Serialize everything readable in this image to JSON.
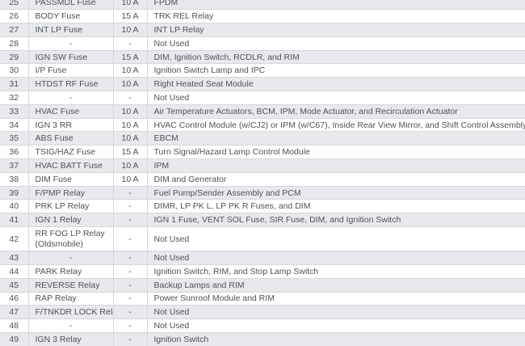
{
  "colors": {
    "stripe_row_bg": "#e8e9ec",
    "plain_row_bg": "#ffffff",
    "border": "#d6d7da",
    "text": "#4e5257"
  },
  "table": {
    "empty_marker": "-",
    "rows": [
      {
        "num": "25",
        "name": "PASSMDL Fuse",
        "amp": "10 A",
        "desc": "FPDM"
      },
      {
        "num": "26",
        "name": "BODY Fuse",
        "amp": "15 A",
        "desc": "TRK REL Relay"
      },
      {
        "num": "27",
        "name": "INT LP Fuse",
        "amp": "10 A",
        "desc": "INT LP Relay"
      },
      {
        "num": "28",
        "name": "-",
        "amp": "-",
        "desc": "Not Used"
      },
      {
        "num": "29",
        "name": "IGN SW Fuse",
        "amp": "15 A",
        "desc": "DIM, Ignition Switch, RCDLR, and RIM"
      },
      {
        "num": "30",
        "name": "I/P Fuse",
        "amp": "10 A",
        "desc": "Ignition Switch Lamp and IPC"
      },
      {
        "num": "31",
        "name": "HTDST RF Fuse",
        "amp": "10 A",
        "desc": "Right Heated Seat Module"
      },
      {
        "num": "32",
        "name": "-",
        "amp": "-",
        "desc": "Not Used"
      },
      {
        "num": "33",
        "name": "HVAC Fuse",
        "amp": "10 A",
        "desc": "Air Temperature Actuators, BCM, IPM, Mode Actuator, and Recirculation Actuator"
      },
      {
        "num": "34",
        "name": "IGN 3 RR",
        "amp": "10 A",
        "desc": "HVAC Control Module (w/CJ2) or IPM (w/C67), Inside Rear View Mirror, and Shift Control Assembly"
      },
      {
        "num": "35",
        "name": "ABS Fuse",
        "amp": "10 A",
        "desc": "EBCM"
      },
      {
        "num": "36",
        "name": "TSIG/HAZ Fuse",
        "amp": "15 A",
        "desc": "Turn Signal/Hazard Lamp Control Module"
      },
      {
        "num": "37",
        "name": "HVAC BATT Fuse",
        "amp": "10 A",
        "desc": "IPM"
      },
      {
        "num": "38",
        "name": "DIM Fuse",
        "amp": "10 A",
        "desc": "DIM and Generator"
      },
      {
        "num": "39",
        "name": "F/PMP Relay",
        "amp": "-",
        "desc": "Fuel Pump/Sender Assembly and PCM"
      },
      {
        "num": "40",
        "name": "PRK LP Relay",
        "amp": "-",
        "desc": "DIMR, LP PK L, LP PK R Fuses, and DIM"
      },
      {
        "num": "41",
        "name": "IGN 1 Relay",
        "amp": "-",
        "desc": "IGN 1 Fuse, VENT SOL Fuse, SIR Fuse, DIM, and Ignition Switch"
      },
      {
        "num": "42",
        "name": "RR FOG LP Relay (Oldsmobile)",
        "amp": "-",
        "desc": "Not Used",
        "tall": true
      },
      {
        "num": "43",
        "name": "-",
        "amp": "-",
        "desc": "Not Used"
      },
      {
        "num": "44",
        "name": "PARK Relay",
        "amp": "-",
        "desc": "Ignition Switch, RIM, and Stop Lamp Switch"
      },
      {
        "num": "45",
        "name": "REVERSE Relay",
        "amp": "-",
        "desc": "Backup Lamps and RIM"
      },
      {
        "num": "46",
        "name": "RAP Relay",
        "amp": "-",
        "desc": "Power Sunroof Module and RIM"
      },
      {
        "num": "47",
        "name": "F/TNKDR LOCK Relay",
        "amp": "-",
        "desc": "Not Used"
      },
      {
        "num": "48",
        "name": "-",
        "amp": "-",
        "desc": "Not Used"
      },
      {
        "num": "49",
        "name": "IGN 3 Relay",
        "amp": "-",
        "desc": "Ignition Switch"
      }
    ]
  }
}
